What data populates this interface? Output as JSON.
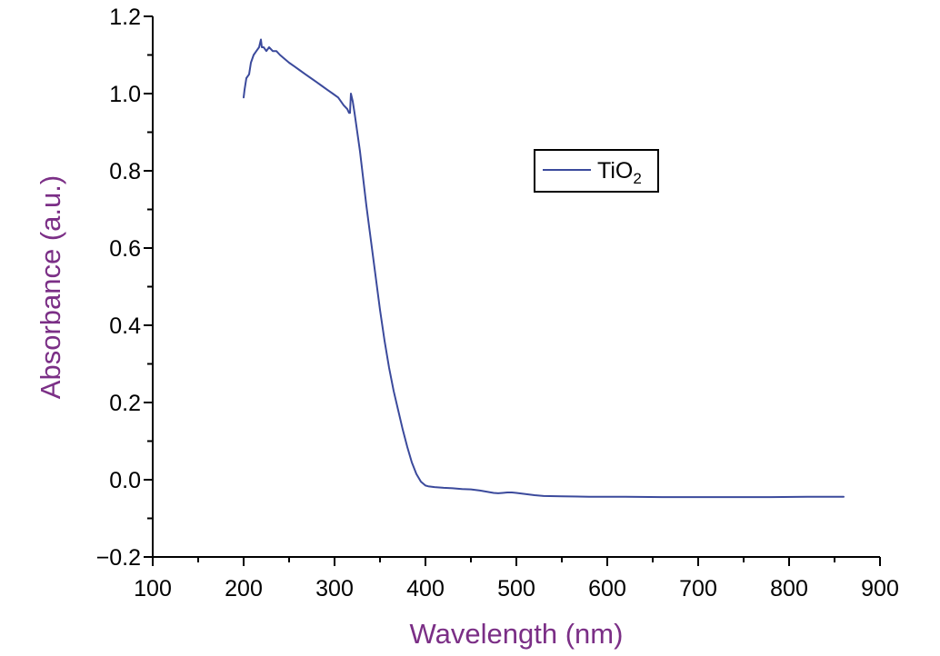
{
  "chart_data": {
    "type": "line",
    "xlabel": "Wavelength (nm)",
    "ylabel": "Absorbance (a.u.)",
    "xlim": [
      100,
      900
    ],
    "ylim": [
      -0.2,
      1.2
    ],
    "x_ticks": [
      "100",
      "200",
      "300",
      "400",
      "500",
      "600",
      "700",
      "800",
      "900"
    ],
    "y_ticks": [
      "−0.2",
      "0.0",
      "0.2",
      "0.4",
      "0.6",
      "0.8",
      "1.0",
      "1.2"
    ],
    "grid": false,
    "legend": {
      "position": "upper-right",
      "label_main": "TiO",
      "label_sub": "2"
    },
    "colors": {
      "series": "#3b4a9c",
      "axis_titles": "#7b2f86",
      "axes": "#000000"
    },
    "series": [
      {
        "name": "TiO2",
        "x": [
          200,
          201,
          203,
          206,
          208,
          211,
          214,
          217,
          219,
          220,
          222,
          225,
          228,
          232,
          236,
          240,
          245,
          250,
          256,
          262,
          268,
          274,
          280,
          286,
          292,
          298,
          304,
          310,
          314,
          316,
          317,
          318,
          320,
          322,
          325,
          328,
          331,
          335,
          340,
          345,
          350,
          355,
          360,
          365,
          370,
          375,
          380,
          385,
          390,
          395,
          400,
          403,
          406,
          410,
          415,
          420,
          430,
          440,
          450,
          460,
          470,
          475,
          480,
          485,
          490,
          495,
          500,
          510,
          520,
          530,
          550,
          580,
          620,
          660,
          700,
          740,
          780,
          820,
          860
        ],
        "y": [
          0.99,
          1.01,
          1.04,
          1.05,
          1.08,
          1.1,
          1.11,
          1.12,
          1.14,
          1.12,
          1.12,
          1.11,
          1.12,
          1.11,
          1.11,
          1.1,
          1.09,
          1.08,
          1.07,
          1.06,
          1.05,
          1.04,
          1.03,
          1.02,
          1.01,
          1.0,
          0.99,
          0.97,
          0.96,
          0.95,
          0.95,
          1.0,
          0.98,
          0.95,
          0.9,
          0.85,
          0.79,
          0.71,
          0.62,
          0.53,
          0.44,
          0.36,
          0.29,
          0.23,
          0.18,
          0.13,
          0.085,
          0.045,
          0.015,
          -0.005,
          -0.015,
          -0.017,
          -0.018,
          -0.019,
          -0.02,
          -0.021,
          -0.022,
          -0.024,
          -0.025,
          -0.028,
          -0.032,
          -0.034,
          -0.035,
          -0.034,
          -0.033,
          -0.033,
          -0.034,
          -0.037,
          -0.04,
          -0.042,
          -0.043,
          -0.044,
          -0.044,
          -0.045,
          -0.045,
          -0.045,
          -0.045,
          -0.044,
          -0.044
        ]
      }
    ]
  }
}
